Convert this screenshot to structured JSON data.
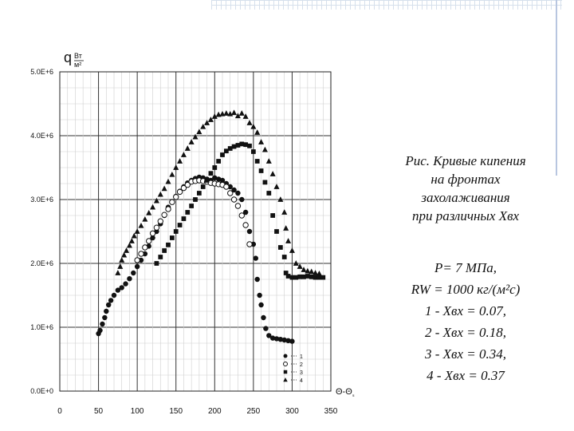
{
  "caption": {
    "lines": [
      "Рис. Кривые кипения",
      "на фронтах",
      "захолаживания",
      "при различных Xвх"
    ]
  },
  "params": {
    "lines": [
      "P= 7 МПа,",
      "RW = 1000 кг/(м²с)",
      "1 - Xвх = 0.07,",
      "2 - Xвх = 0.18,",
      "3 - Xвх = 0.34,",
      "4 - Xвх = 0.37"
    ]
  },
  "chart_data": {
    "type": "scatter",
    "title": "",
    "ylabel": "q, Вт/м²",
    "xlabel": "Θ-Θₛ",
    "xlim": [
      0,
      350
    ],
    "ylim": [
      0,
      5000000
    ],
    "x_ticks": [
      0,
      50,
      100,
      150,
      200,
      250,
      300,
      350
    ],
    "x_tick_labels": [
      "0",
      "50",
      "100",
      "150",
      "200",
      "250",
      "300",
      "350"
    ],
    "y_ticks": [
      0,
      1000000,
      2000000,
      3000000,
      4000000,
      5000000
    ],
    "y_tick_labels": [
      "0.0E+0",
      "1.0E+6",
      "2.0E+6",
      "3.0E+6",
      "4.0E+6",
      "5.0E+6"
    ],
    "grid": true,
    "legend_position": "bottom-right",
    "series": [
      {
        "name": "1",
        "marker": "filled-circle",
        "points": [
          [
            50,
            900000
          ],
          [
            52,
            950000
          ],
          [
            55,
            1050000
          ],
          [
            58,
            1150000
          ],
          [
            60,
            1250000
          ],
          [
            63,
            1350000
          ],
          [
            66,
            1420000
          ],
          [
            70,
            1500000
          ],
          [
            75,
            1580000
          ],
          [
            80,
            1620000
          ],
          [
            85,
            1680000
          ],
          [
            90,
            1760000
          ],
          [
            95,
            1850000
          ],
          [
            100,
            1950000
          ],
          [
            105,
            2050000
          ],
          [
            110,
            2150000
          ],
          [
            115,
            2270000
          ],
          [
            120,
            2400000
          ],
          [
            125,
            2500000
          ],
          [
            130,
            2620000
          ],
          [
            135,
            2750000
          ],
          [
            140,
            2880000
          ],
          [
            145,
            2970000
          ],
          [
            150,
            3050000
          ],
          [
            155,
            3130000
          ],
          [
            160,
            3200000
          ],
          [
            165,
            3260000
          ],
          [
            170,
            3300000
          ],
          [
            175,
            3330000
          ],
          [
            180,
            3350000
          ],
          [
            185,
            3340000
          ],
          [
            190,
            3320000
          ],
          [
            195,
            3300000
          ],
          [
            200,
            3340000
          ],
          [
            205,
            3320000
          ],
          [
            210,
            3300000
          ],
          [
            215,
            3250000
          ],
          [
            220,
            3200000
          ],
          [
            225,
            3150000
          ],
          [
            230,
            3100000
          ],
          [
            235,
            3000000
          ],
          [
            240,
            2800000
          ],
          [
            245,
            2500000
          ],
          [
            250,
            2300000
          ],
          [
            253,
            2080000
          ],
          [
            255,
            1750000
          ],
          [
            258,
            1500000
          ],
          [
            260,
            1350000
          ],
          [
            263,
            1150000
          ],
          [
            266,
            980000
          ],
          [
            270,
            870000
          ],
          [
            275,
            830000
          ],
          [
            280,
            820000
          ],
          [
            285,
            810000
          ],
          [
            290,
            800000
          ],
          [
            295,
            790000
          ],
          [
            300,
            780000
          ]
        ]
      },
      {
        "name": "2",
        "marker": "open-circle",
        "points": [
          [
            100,
            2050000
          ],
          [
            105,
            2150000
          ],
          [
            110,
            2250000
          ],
          [
            115,
            2350000
          ],
          [
            120,
            2470000
          ],
          [
            125,
            2560000
          ],
          [
            130,
            2660000
          ],
          [
            135,
            2760000
          ],
          [
            140,
            2850000
          ],
          [
            145,
            2960000
          ],
          [
            150,
            3040000
          ],
          [
            155,
            3120000
          ],
          [
            160,
            3180000
          ],
          [
            165,
            3230000
          ],
          [
            170,
            3280000
          ],
          [
            175,
            3290000
          ],
          [
            180,
            3300000
          ],
          [
            185,
            3290000
          ],
          [
            190,
            3280000
          ],
          [
            195,
            3260000
          ],
          [
            200,
            3250000
          ],
          [
            205,
            3240000
          ],
          [
            210,
            3230000
          ],
          [
            215,
            3200000
          ],
          [
            220,
            3100000
          ],
          [
            225,
            3000000
          ],
          [
            230,
            2900000
          ],
          [
            235,
            2750000
          ],
          [
            240,
            2600000
          ],
          [
            245,
            2300000
          ]
        ]
      },
      {
        "name": "3",
        "marker": "filled-square",
        "points": [
          [
            125,
            2000000
          ],
          [
            130,
            2100000
          ],
          [
            135,
            2200000
          ],
          [
            140,
            2290000
          ],
          [
            145,
            2400000
          ],
          [
            150,
            2500000
          ],
          [
            155,
            2600000
          ],
          [
            160,
            2700000
          ],
          [
            165,
            2800000
          ],
          [
            170,
            2900000
          ],
          [
            175,
            3000000
          ],
          [
            180,
            3100000
          ],
          [
            185,
            3200000
          ],
          [
            190,
            3300000
          ],
          [
            195,
            3410000
          ],
          [
            200,
            3500000
          ],
          [
            205,
            3600000
          ],
          [
            210,
            3700000
          ],
          [
            215,
            3760000
          ],
          [
            220,
            3800000
          ],
          [
            225,
            3830000
          ],
          [
            230,
            3850000
          ],
          [
            235,
            3870000
          ],
          [
            240,
            3860000
          ],
          [
            245,
            3840000
          ],
          [
            250,
            3750000
          ],
          [
            255,
            3600000
          ],
          [
            260,
            3450000
          ],
          [
            265,
            3270000
          ],
          [
            270,
            3100000
          ],
          [
            275,
            2750000
          ],
          [
            280,
            2500000
          ],
          [
            285,
            2250000
          ],
          [
            290,
            2100000
          ],
          [
            292,
            1850000
          ],
          [
            295,
            1800000
          ],
          [
            300,
            1780000
          ],
          [
            305,
            1780000
          ],
          [
            310,
            1790000
          ],
          [
            315,
            1790000
          ],
          [
            320,
            1800000
          ],
          [
            325,
            1790000
          ],
          [
            330,
            1780000
          ],
          [
            335,
            1780000
          ],
          [
            340,
            1780000
          ]
        ]
      },
      {
        "name": "4",
        "marker": "filled-triangle",
        "points": [
          [
            75,
            1850000
          ],
          [
            78,
            1950000
          ],
          [
            80,
            2050000
          ],
          [
            83,
            2130000
          ],
          [
            86,
            2200000
          ],
          [
            90,
            2280000
          ],
          [
            93,
            2350000
          ],
          [
            96,
            2430000
          ],
          [
            100,
            2500000
          ],
          [
            105,
            2590000
          ],
          [
            110,
            2690000
          ],
          [
            115,
            2790000
          ],
          [
            120,
            2880000
          ],
          [
            125,
            2980000
          ],
          [
            130,
            3080000
          ],
          [
            135,
            3170000
          ],
          [
            140,
            3280000
          ],
          [
            145,
            3390000
          ],
          [
            150,
            3500000
          ],
          [
            155,
            3600000
          ],
          [
            160,
            3700000
          ],
          [
            165,
            3800000
          ],
          [
            170,
            3900000
          ],
          [
            175,
            3980000
          ],
          [
            180,
            4060000
          ],
          [
            185,
            4140000
          ],
          [
            190,
            4200000
          ],
          [
            195,
            4250000
          ],
          [
            200,
            4300000
          ],
          [
            205,
            4330000
          ],
          [
            210,
            4340000
          ],
          [
            215,
            4350000
          ],
          [
            220,
            4340000
          ],
          [
            225,
            4360000
          ],
          [
            230,
            4310000
          ],
          [
            235,
            4350000
          ],
          [
            240,
            4300000
          ],
          [
            245,
            4200000
          ],
          [
            250,
            4140000
          ],
          [
            255,
            4050000
          ],
          [
            260,
            3900000
          ],
          [
            265,
            3780000
          ],
          [
            270,
            3600000
          ],
          [
            275,
            3400000
          ],
          [
            280,
            3200000
          ],
          [
            285,
            3000000
          ],
          [
            290,
            2800000
          ],
          [
            292,
            2550000
          ],
          [
            295,
            2350000
          ],
          [
            300,
            2200000
          ],
          [
            305,
            2000000
          ],
          [
            310,
            1950000
          ],
          [
            315,
            1900000
          ],
          [
            320,
            1880000
          ],
          [
            325,
            1870000
          ],
          [
            330,
            1850000
          ],
          [
            335,
            1840000
          ]
        ]
      }
    ]
  }
}
